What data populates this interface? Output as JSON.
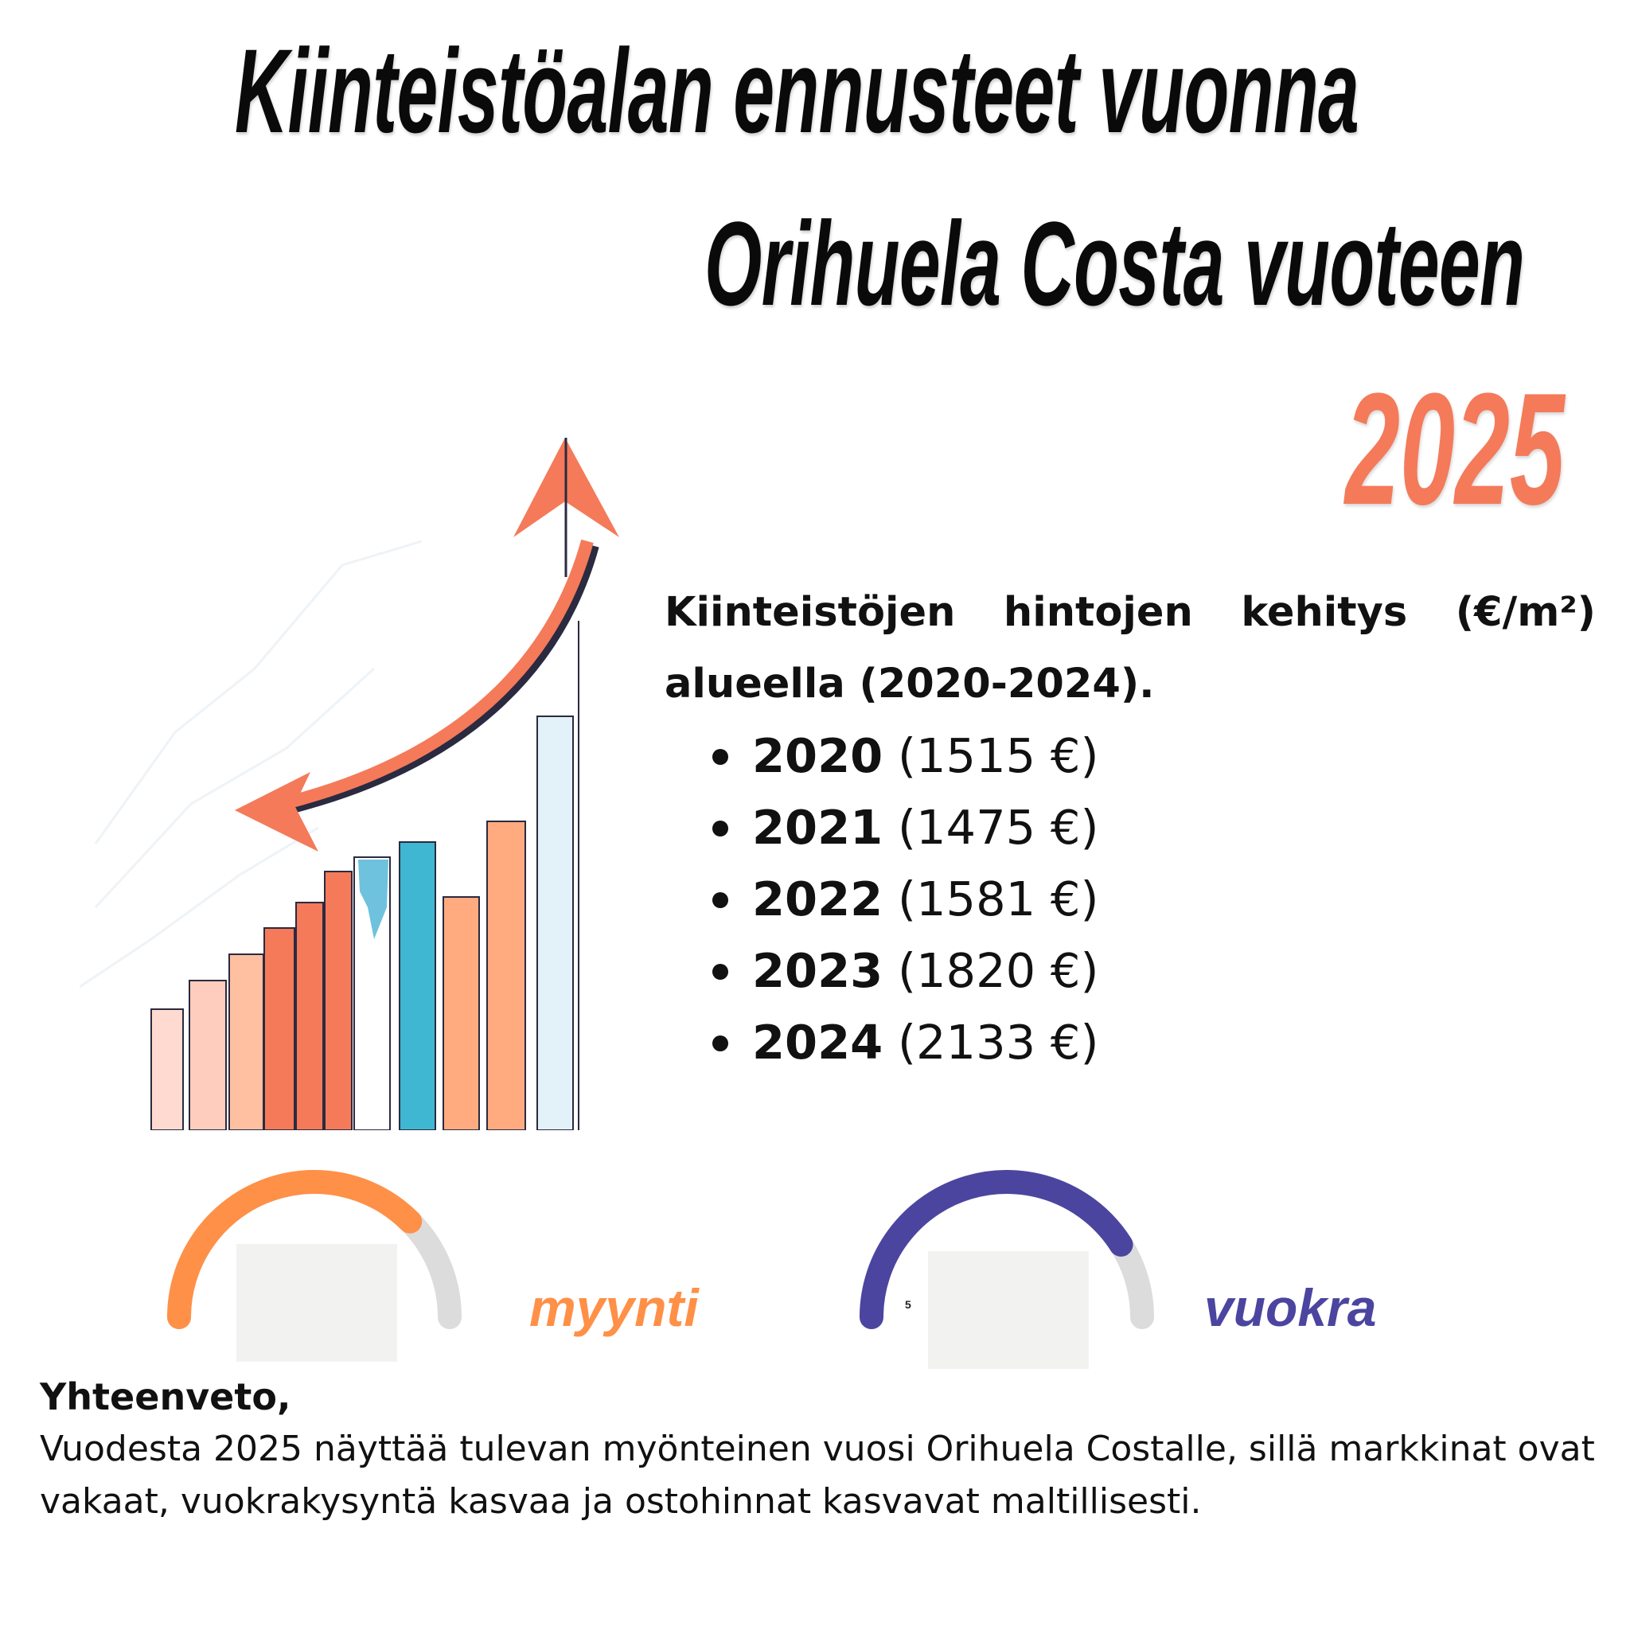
{
  "title": {
    "line1": "Kiinteistöalan ennusteet vuonna",
    "line2": "Orihuela Costa vuoteen",
    "year": "2025"
  },
  "colors": {
    "accent": "#f47a5a",
    "sale_gauge": "#ff9047",
    "rent_gauge": "#4b45a0",
    "gauge_track": "#dcdcdc"
  },
  "price_section": {
    "heading": "Kiinteistöjen hintojen kehitys (€/m²) alueella (2020-2024).",
    "items": [
      {
        "year": "2020",
        "value": "(1515 €)"
      },
      {
        "year": "2021",
        "value": "(1475 €)"
      },
      {
        "year": "2022",
        "value": "(1581 €)"
      },
      {
        "year": "2023",
        "value": "(1820 €)"
      },
      {
        "year": "2024",
        "value": "(2133 €)"
      }
    ]
  },
  "gauges": {
    "sale": {
      "label": "myynti",
      "level_percent": 75
    },
    "rent": {
      "label": "vuokra",
      "value_text": "5",
      "level_percent": 82
    }
  },
  "summary": {
    "heading": "Yhteenveto,",
    "body": "Vuodesta 2025 näyttää tulevan myönteinen vuosi Orihuela Costalle, sillä markkinat ovat vakaat, vuokrakysyntä kasvaa ja ostohinnat kasvavat maltillisesti."
  }
}
